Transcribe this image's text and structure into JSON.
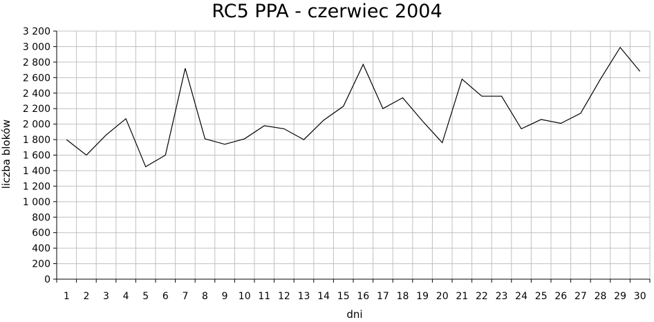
{
  "chart_data": {
    "type": "line",
    "title": "RC5 PPA - czerwiec 2004",
    "xlabel": "dni",
    "ylabel": "liczba bloków",
    "categories": [
      "1",
      "2",
      "3",
      "4",
      "5",
      "6",
      "7",
      "8",
      "9",
      "10",
      "11",
      "12",
      "13",
      "14",
      "15",
      "16",
      "17",
      "18",
      "19",
      "20",
      "21",
      "22",
      "23",
      "24",
      "25",
      "26",
      "27",
      "28",
      "29",
      "30"
    ],
    "series": [
      {
        "values": [
          1800,
          1600,
          1860,
          2070,
          1450,
          1600,
          2720,
          1810,
          1740,
          1810,
          1980,
          1940,
          1800,
          2050,
          2230,
          2770,
          2200,
          2340,
          2040,
          1760,
          2580,
          2360,
          2360,
          1940,
          2060,
          2010,
          2140,
          2580,
          2990,
          2680
        ],
        "color": "#000000"
      }
    ],
    "ylim": [
      0,
      3200
    ],
    "yticks": [
      0,
      200,
      400,
      600,
      800,
      1000,
      1200,
      1400,
      1600,
      1800,
      2000,
      2200,
      2400,
      2600,
      2800,
      3000,
      3200
    ],
    "ytick_labels": [
      "0",
      "200",
      "400",
      "600",
      "800",
      "1 000",
      "1 200",
      "1 400",
      "1 600",
      "1 800",
      "2 000",
      "2 200",
      "2 400",
      "2 600",
      "2 800",
      "3 000",
      "3 200"
    ],
    "grid": true,
    "legend": "none",
    "colors": {
      "grid": "#c0c0c0",
      "axis": "#000000",
      "line": "#000000"
    }
  }
}
